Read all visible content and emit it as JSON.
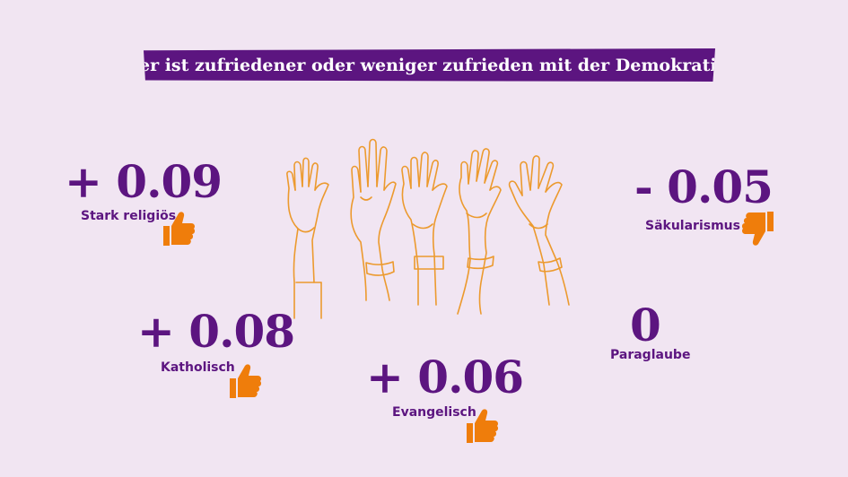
{
  "title": "Wer ist zufriedener oder weniger zufrieden mit der Demokratie?",
  "colors": {
    "background": "#f1e5f2",
    "accent": "#5c1580",
    "thumb": "#ef7d0b",
    "hands": "#ec9a2e"
  },
  "stats": {
    "stark": {
      "value": "+ 0.09",
      "label": "Stark religiös",
      "icon": "thumbs-up-icon"
    },
    "sakular": {
      "value": "- 0.05",
      "label": "Säkularismus",
      "icon": "thumbs-down-icon"
    },
    "katholisch": {
      "value": "+ 0.08",
      "label": "Katholisch",
      "icon": "thumbs-up-icon"
    },
    "evangelisch": {
      "value": "+ 0.06",
      "label": "Evangelisch",
      "icon": "thumbs-up-icon"
    },
    "paraglaube": {
      "value": "0",
      "label": "Paraglaube"
    }
  },
  "illustration": "raised-hands-illustration"
}
